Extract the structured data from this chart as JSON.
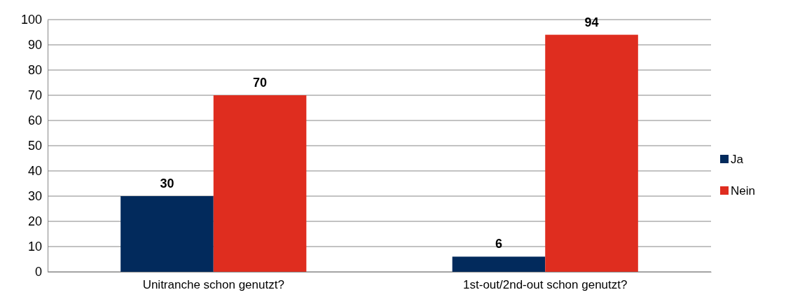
{
  "chart_data": {
    "type": "bar",
    "categories": [
      "Unitranche schon genutzt?",
      "1st-out/2nd-out schon genutzt?"
    ],
    "series": [
      {
        "name": "Ja",
        "color": "#022a5c",
        "values": [
          30,
          6
        ]
      },
      {
        "name": "Nein",
        "color": "#df2d1f",
        "values": [
          70,
          94
        ]
      }
    ],
    "ylim": [
      0,
      100
    ],
    "yticks": [
      0,
      10,
      20,
      30,
      40,
      50,
      60,
      70,
      80,
      90,
      100
    ],
    "grid": "y",
    "legend": "right",
    "data_labels": true
  }
}
